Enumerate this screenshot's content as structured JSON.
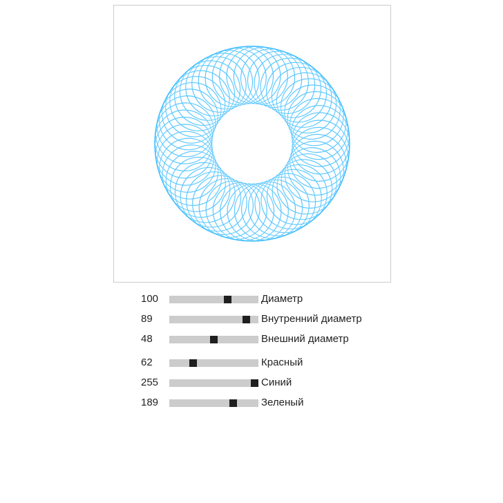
{
  "controls": {
    "diameter": {
      "label": "Диаметр",
      "value": "100",
      "fraction": 0.67
    },
    "inner_diameter": {
      "label": "Внутренний диаметр",
      "value": "89",
      "fraction": 0.9
    },
    "outer_diameter": {
      "label": "Внешний диаметр",
      "value": "48",
      "fraction": 0.5
    },
    "red": {
      "label": "Красный",
      "value": "62",
      "fraction": 0.243
    },
    "blue": {
      "label": "Синий",
      "value": "255",
      "fraction": 1.0
    },
    "green": {
      "label": "Зеленый",
      "value": "189",
      "fraction": 0.741
    }
  },
  "colors": {
    "stroke": "#3ebdff"
  }
}
